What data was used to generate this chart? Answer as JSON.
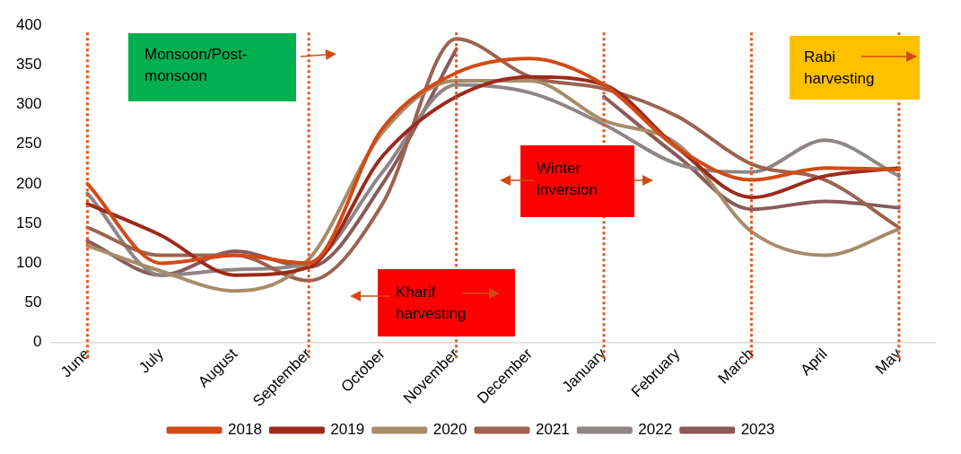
{
  "chart_data": {
    "type": "line",
    "categories": [
      "June",
      "July",
      "August",
      "September",
      "October",
      "November",
      "December",
      "January",
      "February",
      "March",
      "April",
      "May"
    ],
    "series": [
      {
        "name": "2018",
        "color": "#d24a16",
        "values": [
          200,
          100,
          110,
          100,
          270,
          340,
          358,
          325,
          245,
          205,
          220,
          218
        ]
      },
      {
        "name": "2019",
        "color": "#9c2a1c",
        "values": [
          175,
          135,
          85,
          95,
          235,
          310,
          335,
          325,
          245,
          183,
          210,
          220
        ]
      },
      {
        "name": "2020",
        "color": "#a68c69",
        "values": [
          122,
          90,
          65,
          105,
          265,
          330,
          330,
          280,
          250,
          140,
          110,
          143
        ]
      },
      {
        "name": "2021",
        "color": "#9c6350",
        "values": [
          145,
          110,
          110,
          78,
          175,
          383,
          335,
          320,
          285,
          225,
          205,
          145
        ]
      },
      {
        "name": "2022",
        "color": "#8f8585",
        "values": [
          188,
          85,
          92,
          100,
          215,
          325,
          315,
          275,
          225,
          215,
          255,
          210
        ]
      },
      {
        "name": "2023",
        "color": "#8a5a5a",
        "values": [
          128,
          85,
          115,
          95,
          200,
          370,
          null,
          310,
          235,
          168,
          178,
          170
        ]
      }
    ],
    "ylim": [
      0,
      400
    ],
    "yticks": [
      0,
      50,
      100,
      150,
      200,
      250,
      300,
      350,
      400
    ],
    "grid": false,
    "legend": "bottom",
    "marker": "none",
    "line_style": "solid",
    "ref_lines": [
      {
        "axis": "x",
        "value": "June",
        "color": "#e0561e",
        "line_style": "dotted"
      },
      {
        "axis": "x",
        "value": "September",
        "color": "#e0561e",
        "line_style": "dotted"
      },
      {
        "axis": "x",
        "value": "November",
        "color": "#e0561e",
        "line_style": "dotted"
      },
      {
        "axis": "x",
        "value": "January",
        "color": "#e0561e",
        "line_style": "dotted"
      },
      {
        "axis": "x",
        "value": "March",
        "color": "#e0561e",
        "line_style": "dotted"
      },
      {
        "axis": "x",
        "value": "May",
        "color": "#e0561e",
        "line_style": "dotted"
      }
    ],
    "annotations": [
      "Monsoon/Post-\nmonsoon",
      "Kharif\nharvesting",
      "Winter\ninversion",
      "Rabi\nharvesting"
    ]
  }
}
